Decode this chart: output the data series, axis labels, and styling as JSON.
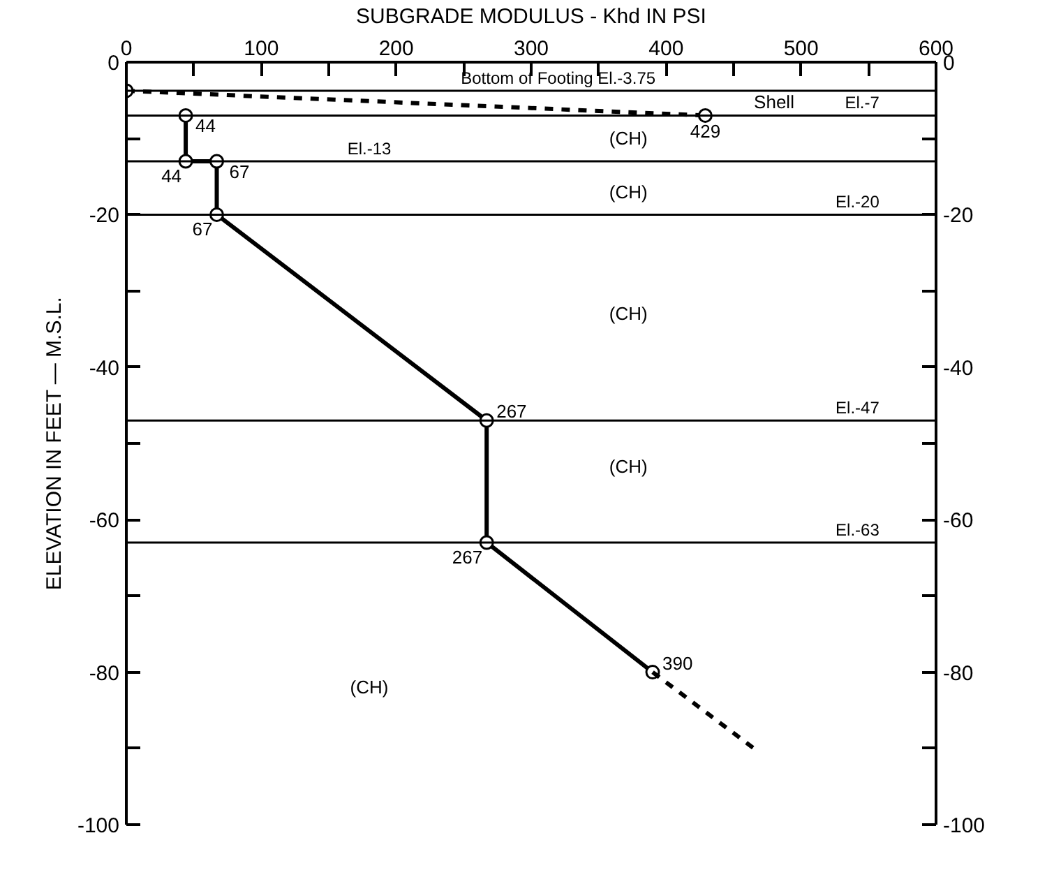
{
  "chart_data": {
    "type": "line",
    "xlabel": "SUBGRADE MODULUS - Khd IN PSI",
    "ylabel": "ELEVATION IN FEET — M.S.L.",
    "xlim": [
      0,
      600
    ],
    "xticks": [
      0,
      {
        "value": 50,
        "label": null
      },
      100,
      {
        "value": 150,
        "label": null
      },
      200,
      {
        "value": 250,
        "label": null
      },
      300,
      {
        "value": 350,
        "label": null
      },
      400,
      {
        "value": 450,
        "label": null
      },
      500,
      {
        "value": 550,
        "label": null
      },
      600
    ],
    "ylim": [
      -100,
      0
    ],
    "yticks": [
      0,
      {
        "value": -10,
        "label": null
      },
      -20,
      {
        "value": -30,
        "label": null
      },
      -40,
      {
        "value": -50,
        "label": null
      },
      -60,
      {
        "value": -70,
        "label": null
      },
      -80,
      {
        "value": -90,
        "label": null
      },
      -100
    ],
    "y2lim": [
      -100,
      0
    ],
    "y2ticks": [
      0,
      {
        "value": -10,
        "label": null
      },
      -20,
      {
        "value": -30,
        "label": null
      },
      -40,
      {
        "value": -50,
        "label": null
      },
      -60,
      {
        "value": -70,
        "label": null
      },
      -80,
      {
        "value": -90,
        "label": null
      },
      -100
    ],
    "grid": false,
    "series": [
      {
        "color": "#000000",
        "marker": "circle",
        "line_style": "solid",
        "x": [
          44,
          44,
          67,
          67,
          267,
          267,
          390
        ],
        "values": [
          -7,
          -13,
          -13,
          -20,
          -47,
          -63,
          -80
        ]
      },
      {
        "color": "#000000",
        "marker": "none",
        "line_style": "dashed",
        "x": [
          390,
          465
        ],
        "values": [
          -80,
          -90
        ]
      },
      {
        "color": "#000000",
        "marker": "circle",
        "line_style": "dashed",
        "x": [
          0,
          429
        ],
        "values": [
          -3.75,
          -7
        ]
      }
    ],
    "ref_lines": [
      {
        "axis": "y",
        "value": -3.75,
        "label": "Bottom of Footing El.-3.75",
        "color": "#000000"
      },
      {
        "axis": "y",
        "value": -7,
        "label": "El.-7",
        "color": "#000000"
      },
      {
        "axis": "y",
        "value": -13,
        "label": "El.-13",
        "color": "#000000"
      },
      {
        "axis": "y",
        "value": -20,
        "label": "El.-20",
        "color": "#000000"
      },
      {
        "axis": "y",
        "value": -47,
        "label": "El.-47",
        "color": "#000000"
      },
      {
        "axis": "y",
        "value": -63,
        "label": "El.-63",
        "color": "#000000"
      }
    ],
    "annotations": [
      {
        "text": "44",
        "x": 44,
        "y": -7
      },
      {
        "text": "44",
        "x": 44,
        "y": -13
      },
      {
        "text": "67",
        "x": 67,
        "y": -13
      },
      {
        "text": "67",
        "x": 67,
        "y": -20
      },
      {
        "text": "267",
        "x": 267,
        "y": -47
      },
      {
        "text": "267",
        "x": 267,
        "y": -63
      },
      {
        "text": "390",
        "x": 390,
        "y": -80
      },
      {
        "text": "429",
        "x": 429,
        "y": -7
      },
      "Shell",
      "(CH)",
      "(CH)",
      "(CH)",
      "(CH)",
      "(CH)"
    ]
  }
}
